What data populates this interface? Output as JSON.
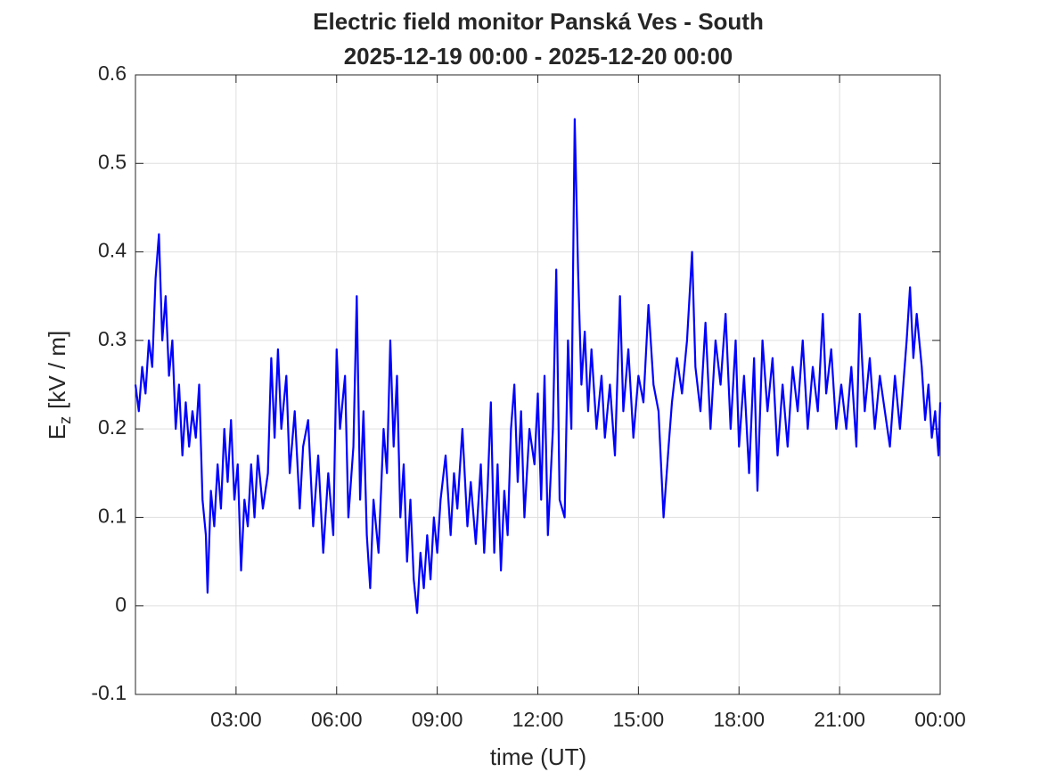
{
  "chart_data": {
    "type": "line",
    "title": [
      "Electric field monitor Panská Ves - South",
      "2025-12-19 00:00 - 2025-12-20 00:00"
    ],
    "xlabel": "time (UT)",
    "ylabel": [
      "E",
      "z",
      "[kV / m]"
    ],
    "xlim": [
      0,
      24
    ],
    "xticks": [
      {
        "value": 3,
        "label": "03:00"
      },
      {
        "value": 6,
        "label": "06:00"
      },
      {
        "value": 9,
        "label": "09:00"
      },
      {
        "value": 12,
        "label": "12:00"
      },
      {
        "value": 15,
        "label": "15:00"
      },
      {
        "value": 18,
        "label": "18:00"
      },
      {
        "value": 21,
        "label": "21:00"
      },
      {
        "value": 24,
        "label": "00:00"
      }
    ],
    "ylim": [
      -0.1,
      0.6
    ],
    "yticks": [
      -0.1,
      0,
      0.1,
      0.2,
      0.3,
      0.4,
      0.5,
      0.6
    ],
    "grid": true,
    "x": [
      0,
      0.1,
      0.2,
      0.3,
      0.4,
      0.5,
      0.6,
      0.7,
      0.8,
      0.9,
      1.0,
      1.1,
      1.2,
      1.3,
      1.4,
      1.5,
      1.6,
      1.7,
      1.8,
      1.9,
      2.0,
      2.1,
      2.15,
      2.25,
      2.35,
      2.45,
      2.55,
      2.65,
      2.75,
      2.85,
      2.95,
      3.05,
      3.15,
      3.25,
      3.35,
      3.45,
      3.55,
      3.65,
      3.8,
      3.95,
      4.05,
      4.15,
      4.25,
      4.35,
      4.5,
      4.6,
      4.75,
      4.9,
      5.0,
      5.15,
      5.3,
      5.45,
      5.6,
      5.75,
      5.9,
      6.0,
      6.1,
      6.25,
      6.35,
      6.5,
      6.6,
      6.7,
      6.8,
      6.9,
      7.0,
      7.1,
      7.25,
      7.4,
      7.5,
      7.6,
      7.7,
      7.8,
      7.9,
      8.0,
      8.1,
      8.2,
      8.3,
      8.4,
      8.5,
      8.6,
      8.7,
      8.8,
      8.9,
      9.0,
      9.1,
      9.25,
      9.4,
      9.5,
      9.6,
      9.75,
      9.9,
      10.0,
      10.15,
      10.3,
      10.4,
      10.5,
      10.6,
      10.7,
      10.8,
      10.9,
      11.0,
      11.1,
      11.2,
      11.3,
      11.4,
      11.5,
      11.6,
      11.75,
      11.9,
      12.0,
      12.1,
      12.2,
      12.3,
      12.45,
      12.55,
      12.65,
      12.8,
      12.9,
      13.0,
      13.1,
      13.2,
      13.3,
      13.4,
      13.5,
      13.6,
      13.75,
      13.9,
      14.0,
      14.15,
      14.3,
      14.45,
      14.55,
      14.7,
      14.85,
      15.0,
      15.15,
      15.3,
      15.45,
      15.6,
      15.75,
      15.9,
      16.0,
      16.15,
      16.3,
      16.45,
      16.6,
      16.7,
      16.85,
      17.0,
      17.15,
      17.3,
      17.45,
      17.6,
      17.75,
      17.9,
      18.0,
      18.15,
      18.3,
      18.45,
      18.55,
      18.7,
      18.85,
      19.0,
      19.15,
      19.3,
      19.45,
      19.6,
      19.75,
      19.9,
      20.05,
      20.2,
      20.35,
      20.5,
      20.6,
      20.75,
      20.9,
      21.05,
      21.2,
      21.35,
      21.5,
      21.6,
      21.75,
      21.9,
      22.05,
      22.2,
      22.35,
      22.5,
      22.65,
      22.8,
      22.9,
      23.0,
      23.1,
      23.2,
      23.3,
      23.45,
      23.55,
      23.65,
      23.75,
      23.85,
      23.95,
      24.0
    ],
    "series": [
      {
        "color": "#0000ff",
        "values": [
          0.25,
          0.22,
          0.27,
          0.24,
          0.3,
          0.27,
          0.37,
          0.42,
          0.3,
          0.35,
          0.26,
          0.3,
          0.2,
          0.25,
          0.17,
          0.23,
          0.18,
          0.22,
          0.19,
          0.25,
          0.12,
          0.08,
          0.015,
          0.13,
          0.09,
          0.16,
          0.11,
          0.2,
          0.14,
          0.21,
          0.12,
          0.16,
          0.04,
          0.12,
          0.09,
          0.16,
          0.1,
          0.17,
          0.11,
          0.15,
          0.28,
          0.19,
          0.29,
          0.2,
          0.26,
          0.15,
          0.22,
          0.11,
          0.18,
          0.21,
          0.09,
          0.17,
          0.06,
          0.15,
          0.08,
          0.29,
          0.2,
          0.26,
          0.1,
          0.18,
          0.35,
          0.12,
          0.22,
          0.08,
          0.02,
          0.12,
          0.06,
          0.2,
          0.15,
          0.3,
          0.18,
          0.26,
          0.1,
          0.16,
          0.05,
          0.12,
          0.03,
          -0.008,
          0.06,
          0.02,
          0.08,
          0.03,
          0.1,
          0.06,
          0.12,
          0.17,
          0.08,
          0.15,
          0.11,
          0.2,
          0.09,
          0.14,
          0.07,
          0.16,
          0.06,
          0.13,
          0.23,
          0.06,
          0.16,
          0.04,
          0.13,
          0.08,
          0.2,
          0.25,
          0.14,
          0.22,
          0.1,
          0.2,
          0.16,
          0.24,
          0.12,
          0.26,
          0.08,
          0.2,
          0.38,
          0.12,
          0.1,
          0.3,
          0.2,
          0.55,
          0.38,
          0.25,
          0.31,
          0.22,
          0.29,
          0.2,
          0.26,
          0.19,
          0.25,
          0.17,
          0.35,
          0.22,
          0.29,
          0.19,
          0.26,
          0.23,
          0.34,
          0.25,
          0.22,
          0.1,
          0.18,
          0.23,
          0.28,
          0.24,
          0.3,
          0.4,
          0.27,
          0.22,
          0.32,
          0.2,
          0.3,
          0.25,
          0.33,
          0.2,
          0.3,
          0.18,
          0.26,
          0.15,
          0.28,
          0.13,
          0.3,
          0.22,
          0.28,
          0.17,
          0.25,
          0.18,
          0.27,
          0.22,
          0.3,
          0.2,
          0.27,
          0.22,
          0.33,
          0.24,
          0.29,
          0.2,
          0.25,
          0.2,
          0.27,
          0.18,
          0.33,
          0.22,
          0.28,
          0.2,
          0.26,
          0.22,
          0.18,
          0.26,
          0.2,
          0.25,
          0.3,
          0.36,
          0.28,
          0.33,
          0.27,
          0.21,
          0.25,
          0.19,
          0.22,
          0.17,
          0.23
        ]
      }
    ]
  }
}
